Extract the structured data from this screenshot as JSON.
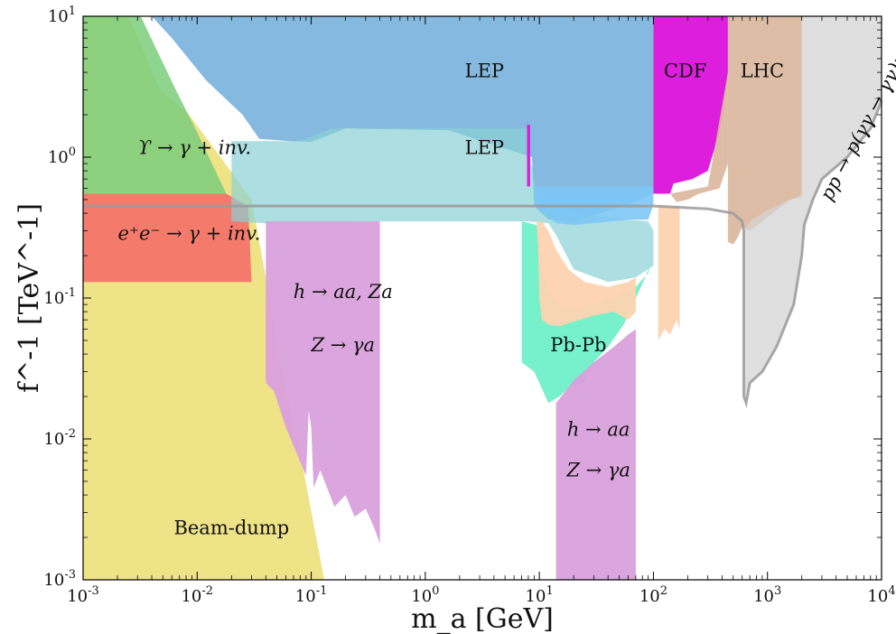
{
  "chart_data": {
    "type": "area",
    "x_scale": "log",
    "y_scale": "log",
    "xlim": [
      0.001,
      10000
    ],
    "ylim": [
      0.001,
      10
    ],
    "xlabel": "m_a  [GeV]",
    "ylabel": "f^-1  [TeV^-1]",
    "x_ticks": [
      0.001,
      0.01,
      0.1,
      1,
      10,
      100,
      1000,
      10000
    ],
    "y_ticks": [
      0.001,
      0.01,
      0.1,
      1,
      10
    ],
    "x_tick_labels": [
      {
        "base": "10",
        "exp": "-3"
      },
      {
        "base": "10",
        "exp": "-2"
      },
      {
        "base": "10",
        "exp": "-1"
      },
      {
        "base": "10",
        "exp": "0"
      },
      {
        "base": "10",
        "exp": "1"
      },
      {
        "base": "10",
        "exp": "2"
      },
      {
        "base": "10",
        "exp": "3"
      },
      {
        "base": "10",
        "exp": "4"
      }
    ],
    "y_tick_labels": [
      {
        "base": "10",
        "exp": "-3"
      },
      {
        "base": "10",
        "exp": "-2"
      },
      {
        "base": "10",
        "exp": "-1"
      },
      {
        "base": "10",
        "exp": "0"
      },
      {
        "base": "10",
        "exp": "1"
      }
    ],
    "regions": [
      {
        "id": "beam-dump",
        "color": "#ede07a",
        "opacity": 0.9,
        "points": [
          [
            0.001,
            0.001
          ],
          [
            0.001,
            10
          ],
          [
            0.0025,
            10
          ],
          [
            0.0047,
            3.0
          ],
          [
            0.0085,
            2.0
          ],
          [
            0.016,
            1.0
          ],
          [
            0.03,
            0.5
          ],
          [
            0.04,
            0.14
          ],
          [
            0.055,
            0.03
          ],
          [
            0.08,
            0.008
          ],
          [
            0.13,
            0.001
          ]
        ]
      },
      {
        "id": "upsilon",
        "color": "#7bcc7b",
        "opacity": 0.85,
        "points": [
          [
            0.001,
            0.55
          ],
          [
            0.001,
            10
          ],
          [
            0.0032,
            10
          ],
          [
            0.0065,
            3.0
          ],
          [
            0.01,
            1.5
          ],
          [
            0.018,
            0.55
          ]
        ]
      },
      {
        "id": "ee-gamma",
        "color": "#f3756a",
        "opacity": 0.95,
        "points": [
          [
            0.001,
            0.13
          ],
          [
            0.001,
            0.55
          ],
          [
            0.018,
            0.55
          ],
          [
            0.028,
            0.45
          ],
          [
            0.03,
            0.13
          ]
        ]
      },
      {
        "id": "lep-upper",
        "color": "#6aa9d8",
        "opacity": 0.82,
        "points": [
          [
            0.004,
            10
          ],
          [
            100,
            10
          ],
          [
            100,
            0.55
          ],
          [
            60,
            0.46
          ],
          [
            20,
            0.35
          ],
          [
            12,
            0.36
          ],
          [
            9,
            0.45
          ],
          [
            8.6,
            1.0
          ],
          [
            1.6,
            1.55
          ],
          [
            0.2,
            1.6
          ],
          [
            0.1,
            1.28
          ],
          [
            0.065,
            1.3
          ],
          [
            0.035,
            1.35
          ],
          [
            0.025,
            2.0
          ],
          [
            0.012,
            3.5
          ],
          [
            0.006,
            7.0
          ]
        ]
      },
      {
        "id": "lep-lower",
        "color": "#8ad2d6",
        "opacity": 0.7,
        "points": [
          [
            0.02,
            0.35
          ],
          [
            0.02,
            1.3
          ],
          [
            0.08,
            1.3
          ],
          [
            0.15,
            1.6
          ],
          [
            8,
            1.6
          ],
          [
            8.5,
            0.9
          ],
          [
            10,
            0.45
          ],
          [
            40,
            0.37
          ],
          [
            90,
            0.35
          ],
          [
            100,
            0.3
          ],
          [
            100,
            0.17
          ],
          [
            70,
            0.14
          ],
          [
            40,
            0.13
          ],
          [
            20,
            0.16
          ],
          [
            14,
            0.28
          ],
          [
            12,
            0.34
          ],
          [
            8,
            0.35
          ],
          [
            0.4,
            0.35
          ],
          [
            0.2,
            0.34
          ],
          [
            0.1,
            0.34
          ],
          [
            0.04,
            0.34
          ]
        ]
      },
      {
        "id": "cdf",
        "color": "#dd1fdd",
        "opacity": 1.0,
        "points": [
          [
            100,
            0.55
          ],
          [
            100,
            10
          ],
          [
            450,
            10
          ],
          [
            450,
            4.0
          ],
          [
            380,
            1.5
          ],
          [
            300,
            0.8
          ],
          [
            220,
            0.7
          ],
          [
            150,
            0.65
          ],
          [
            140,
            0.55
          ]
        ]
      },
      {
        "id": "cdf-sliver",
        "color": "#dd1fdd",
        "opacity": 1.0,
        "points": [
          [
            7.8,
            0.62
          ],
          [
            7.8,
            1.7
          ],
          [
            8.3,
            1.7
          ],
          [
            8.3,
            0.62
          ]
        ]
      },
      {
        "id": "lhc",
        "color": "#d9b69b",
        "opacity": 0.9,
        "points": [
          [
            450,
            0.25
          ],
          [
            450,
            10
          ],
          [
            2000,
            10
          ],
          [
            2000,
            0.52
          ],
          [
            1600,
            0.5
          ],
          [
            1200,
            0.42
          ],
          [
            900,
            0.35
          ],
          [
            700,
            0.3
          ],
          [
            600,
            0.32
          ],
          [
            550,
            0.27
          ],
          [
            500,
            0.24
          ]
        ]
      },
      {
        "id": "lhc-band",
        "color": "#d9b69b",
        "opacity": 0.9,
        "points": [
          [
            140,
            0.55
          ],
          [
            300,
            0.62
          ],
          [
            450,
            4.0
          ],
          [
            450,
            0.9
          ],
          [
            380,
            0.6
          ],
          [
            250,
            0.55
          ],
          [
            200,
            0.5
          ],
          [
            160,
            0.48
          ]
        ]
      },
      {
        "id": "pp-gamma",
        "color": "#d4d4d4",
        "opacity": 0.75,
        "points": [
          [
            2000,
            10
          ],
          [
            8000,
            10
          ],
          [
            10000,
            10
          ],
          [
            10000,
            2.5
          ],
          [
            8000,
            1.6
          ],
          [
            5000,
            1.0
          ],
          [
            3000,
            0.7
          ],
          [
            2500,
            0.5
          ],
          [
            2100,
            0.33
          ],
          [
            2000,
            0.2
          ],
          [
            1700,
            0.09
          ],
          [
            1200,
            0.045
          ],
          [
            900,
            0.03
          ],
          [
            700,
            0.025
          ],
          [
            650,
            0.018
          ],
          [
            620,
            0.02
          ],
          [
            620,
            0.3
          ],
          [
            700,
            0.35
          ],
          [
            1000,
            0.42
          ],
          [
            1400,
            0.48
          ],
          [
            1800,
            0.52
          ],
          [
            2000,
            0.55
          ]
        ]
      },
      {
        "id": "h-aa-za",
        "color": "#d9a0dc",
        "opacity": 0.95,
        "points": [
          [
            0.04,
            0.025
          ],
          [
            0.04,
            0.35
          ],
          [
            0.4,
            0.35
          ],
          [
            0.4,
            0.0018
          ],
          [
            0.36,
            0.0023
          ],
          [
            0.3,
            0.0032
          ],
          [
            0.24,
            0.0028
          ],
          [
            0.2,
            0.004
          ],
          [
            0.16,
            0.0033
          ],
          [
            0.12,
            0.006
          ],
          [
            0.105,
            0.0045
          ],
          [
            0.1,
            0.012
          ],
          [
            0.095,
            0.016
          ],
          [
            0.09,
            0.0055
          ],
          [
            0.075,
            0.0078
          ],
          [
            0.06,
            0.012
          ],
          [
            0.047,
            0.022
          ],
          [
            0.042,
            0.024
          ]
        ]
      },
      {
        "id": "pbpb",
        "color": "#6ff0c8",
        "opacity": 0.95,
        "points": [
          [
            7,
            0.035
          ],
          [
            7,
            0.35
          ],
          [
            9.5,
            0.33
          ],
          [
            10.5,
            0.17
          ],
          [
            12,
            0.11
          ],
          [
            16,
            0.085
          ],
          [
            22,
            0.082
          ],
          [
            32,
            0.09
          ],
          [
            45,
            0.1
          ],
          [
            70,
            0.12
          ],
          [
            90,
            0.15
          ],
          [
            95,
            0.18
          ],
          [
            85,
            0.14
          ],
          [
            70,
            0.1
          ],
          [
            55,
            0.065
          ],
          [
            40,
            0.045
          ],
          [
            30,
            0.035
          ],
          [
            24,
            0.025
          ],
          [
            18,
            0.023
          ],
          [
            15,
            0.02
          ],
          [
            12,
            0.018
          ],
          [
            10,
            0.025
          ],
          [
            9,
            0.03
          ]
        ]
      },
      {
        "id": "peach",
        "color": "#fdd3b0",
        "opacity": 0.95,
        "points": [
          [
            9.5,
            0.35
          ],
          [
            10.5,
            0.35
          ],
          [
            12,
            0.3
          ],
          [
            14,
            0.22
          ],
          [
            18,
            0.16
          ],
          [
            25,
            0.13
          ],
          [
            40,
            0.12
          ],
          [
            60,
            0.13
          ],
          [
            70,
            0.14
          ],
          [
            70,
            0.08
          ],
          [
            60,
            0.07
          ],
          [
            45,
            0.08
          ],
          [
            30,
            0.075
          ],
          [
            20,
            0.068
          ],
          [
            15,
            0.063
          ],
          [
            12,
            0.065
          ],
          [
            10.5,
            0.07
          ],
          [
            10,
            0.1
          ],
          [
            9.8,
            0.2
          ]
        ]
      },
      {
        "id": "peach-strip",
        "color": "#fdd3b0",
        "opacity": 0.95,
        "points": [
          [
            110,
            0.45
          ],
          [
            110,
            0.05
          ],
          [
            125,
            0.06
          ],
          [
            140,
            0.055
          ],
          [
            160,
            0.07
          ],
          [
            170,
            0.06
          ],
          [
            170,
            0.45
          ]
        ]
      },
      {
        "id": "h-aa-lower",
        "color": "#d9a0dc",
        "opacity": 0.95,
        "points": [
          [
            14,
            0.001
          ],
          [
            14,
            0.018
          ],
          [
            20,
            0.026
          ],
          [
            30,
            0.035
          ],
          [
            45,
            0.045
          ],
          [
            60,
            0.055
          ],
          [
            70,
            0.06
          ],
          [
            70,
            0.001
          ]
        ]
      },
      {
        "id": "lep-blue-low",
        "color": "#7dc7f5",
        "opacity": 0.9,
        "points": [
          [
            9,
            0.46
          ],
          [
            9,
            0.62
          ],
          [
            100,
            0.62
          ],
          [
            100,
            0.46
          ],
          [
            90,
            0.36
          ],
          [
            60,
            0.36
          ],
          [
            20,
            0.33
          ],
          [
            14,
            0.34
          ],
          [
            10,
            0.42
          ]
        ]
      }
    ],
    "overlay_curve": {
      "id": "pp-curve",
      "color": "#9a9a9a",
      "points": [
        [
          0.001,
          0.45
        ],
        [
          0.01,
          0.45
        ],
        [
          0.1,
          0.45
        ],
        [
          1,
          0.45
        ],
        [
          10,
          0.45
        ],
        [
          100,
          0.45
        ],
        [
          300,
          0.43
        ],
        [
          500,
          0.4
        ],
        [
          600,
          0.35
        ],
        [
          620,
          0.3
        ],
        [
          620,
          0.02
        ],
        [
          650,
          0.018
        ],
        [
          700,
          0.025
        ],
        [
          900,
          0.03
        ],
        [
          1200,
          0.045
        ],
        [
          1700,
          0.09
        ],
        [
          2000,
          0.2
        ],
        [
          2100,
          0.33
        ],
        [
          2500,
          0.5
        ],
        [
          3000,
          0.7
        ],
        [
          5000,
          1.0
        ],
        [
          8000,
          1.6
        ],
        [
          10000,
          2.5
        ]
      ]
    },
    "labels": [
      {
        "text": "LEP",
        "x": 3.3,
        "y": 3.7
      },
      {
        "text": "LEP",
        "x": 3.3,
        "y": 1.05
      },
      {
        "text": "CDF",
        "x": 190,
        "y": 3.7
      },
      {
        "text": "LHC",
        "x": 900,
        "y": 3.7
      },
      {
        "text": "ϒ → γ + inv.",
        "x": 0.0095,
        "y": 1.05,
        "math": true
      },
      {
        "text": "e⁺e⁻ → γ + inv.",
        "x": 0.0085,
        "y": 0.26,
        "math": true
      },
      {
        "text": "h → aa, Za",
        "x": 0.19,
        "y": 0.1,
        "math": true
      },
      {
        "text": "Z → γa",
        "x": 0.19,
        "y": 0.042,
        "math": true
      },
      {
        "text": "Pb-Pb",
        "x": 22,
        "y": 0.042
      },
      {
        "text": "h → aa",
        "x": 33,
        "y": 0.0105,
        "math": true
      },
      {
        "text": "Z → γa",
        "x": 33,
        "y": 0.0054,
        "math": true
      },
      {
        "text": "Beam-dump",
        "x": 0.02,
        "y": 0.0021
      }
    ],
    "rotated_label": {
      "text": "pp → p(γγ → γγ)p",
      "x": 3600,
      "y": 0.48,
      "rotation": -62
    }
  }
}
